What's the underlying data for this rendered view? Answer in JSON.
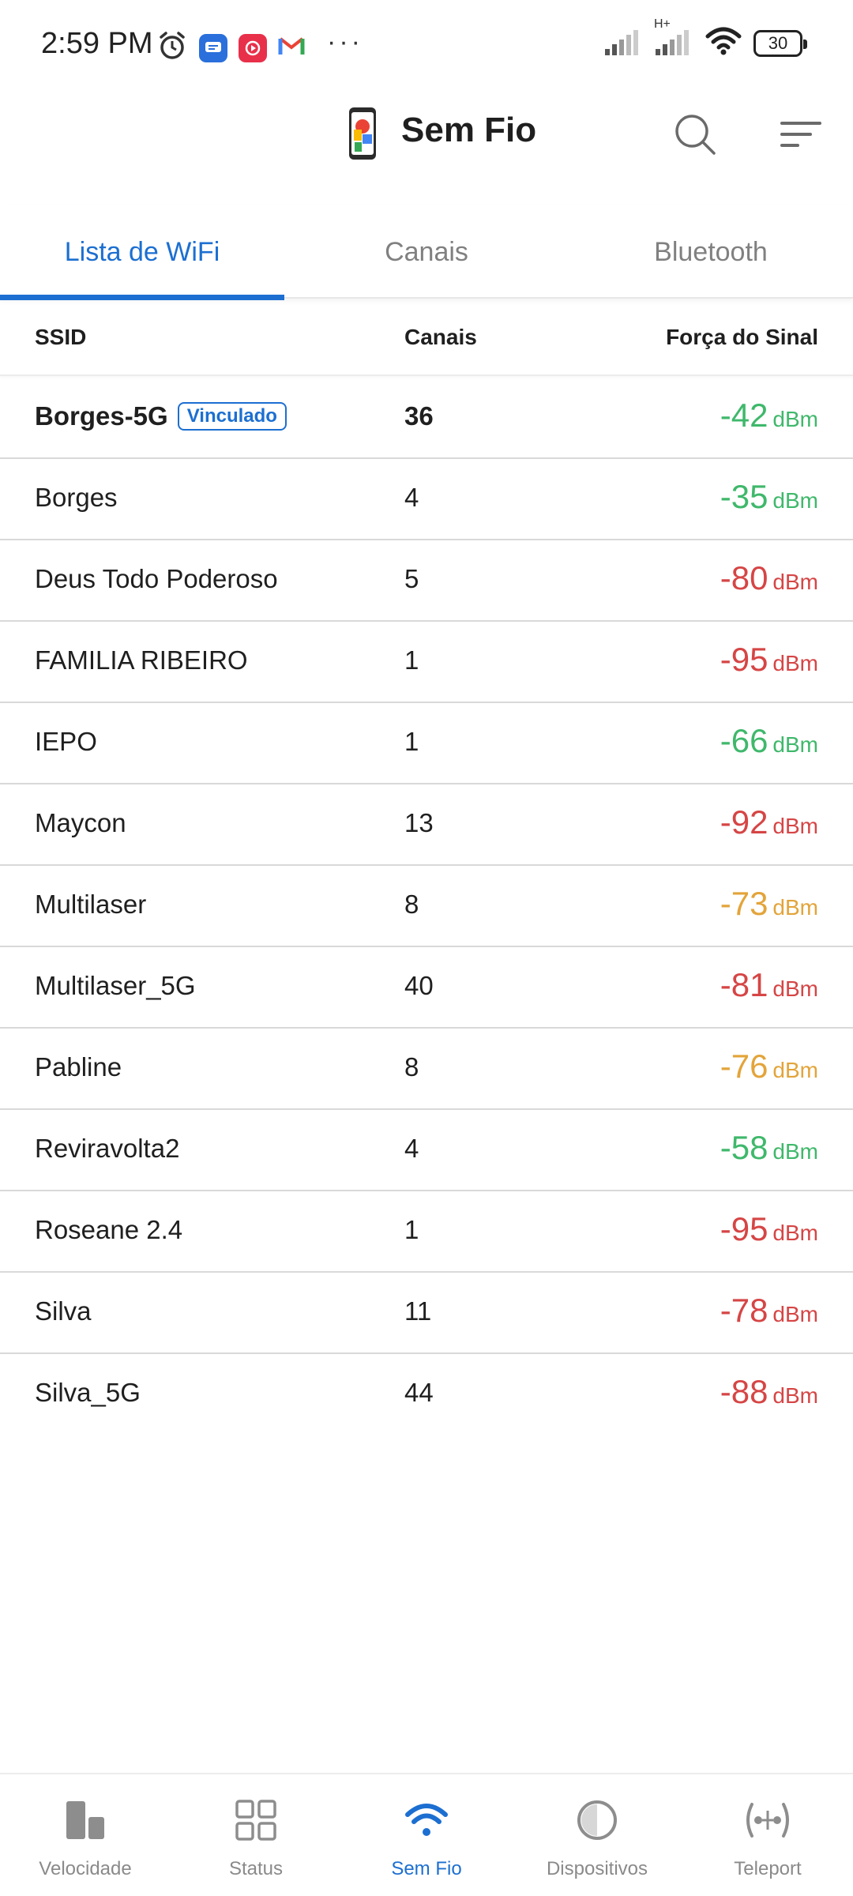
{
  "status_bar": {
    "time": "2:59 PM",
    "battery": "30",
    "network_label": "H+",
    "icons": [
      "alarm-icon",
      "messages-icon",
      "globoplay-icon",
      "gmail-icon",
      "more-dots-icon",
      "signal-icon",
      "signal-icon",
      "wifi-icon",
      "battery-icon"
    ]
  },
  "header": {
    "title": "Sem Fio"
  },
  "tabs": [
    {
      "label": "Lista de WiFi",
      "active": true
    },
    {
      "label": "Canais",
      "active": false
    },
    {
      "label": "Bluetooth",
      "active": false
    }
  ],
  "table": {
    "columns": {
      "ssid": "SSID",
      "channel": "Canais",
      "signal": "Força do Sinal"
    },
    "linked_label": "Vinculado",
    "unit": "dBm",
    "rows": [
      {
        "ssid": "Borges-5G",
        "channel": "36",
        "signal": "-42",
        "level": "good",
        "linked": true
      },
      {
        "ssid": "Borges",
        "channel": "4",
        "signal": "-35",
        "level": "good",
        "linked": false
      },
      {
        "ssid": "Deus Todo Poderoso",
        "channel": "5",
        "signal": "-80",
        "level": "bad",
        "linked": false
      },
      {
        "ssid": "FAMILIA RIBEIRO",
        "channel": "1",
        "signal": "-95",
        "level": "bad",
        "linked": false
      },
      {
        "ssid": "IEPO",
        "channel": "1",
        "signal": "-66",
        "level": "good",
        "linked": false
      },
      {
        "ssid": "Maycon",
        "channel": "13",
        "signal": "-92",
        "level": "bad",
        "linked": false
      },
      {
        "ssid": "Multilaser",
        "channel": "8",
        "signal": "-73",
        "level": "warn",
        "linked": false
      },
      {
        "ssid": "Multilaser_5G",
        "channel": "40",
        "signal": "-81",
        "level": "bad",
        "linked": false
      },
      {
        "ssid": "Pabline",
        "channel": "8",
        "signal": "-76",
        "level": "warn",
        "linked": false
      },
      {
        "ssid": "Reviravolta2",
        "channel": "4",
        "signal": "-58",
        "level": "good",
        "linked": false
      },
      {
        "ssid": "Roseane 2.4",
        "channel": "1",
        "signal": "-95",
        "level": "bad",
        "linked": false
      },
      {
        "ssid": "Silva",
        "channel": "11",
        "signal": "-78",
        "level": "bad",
        "linked": false
      },
      {
        "ssid": "Silva_5G",
        "channel": "44",
        "signal": "-88",
        "level": "bad",
        "linked": false
      }
    ]
  },
  "bottom_nav": [
    {
      "label": "Velocidade",
      "icon": "speed-bars-icon",
      "active": false
    },
    {
      "label": "Status",
      "icon": "grid-icon",
      "active": false
    },
    {
      "label": "Sem Fio",
      "icon": "wifi-icon",
      "active": true
    },
    {
      "label": "Dispositivos",
      "icon": "circle-icon",
      "active": false
    },
    {
      "label": "Teleport",
      "icon": "teleport-icon",
      "active": false
    }
  ],
  "colors": {
    "accent": "#1c6fd1",
    "good": "#3fb86b",
    "warn": "#e3a43a",
    "bad": "#d64545"
  }
}
